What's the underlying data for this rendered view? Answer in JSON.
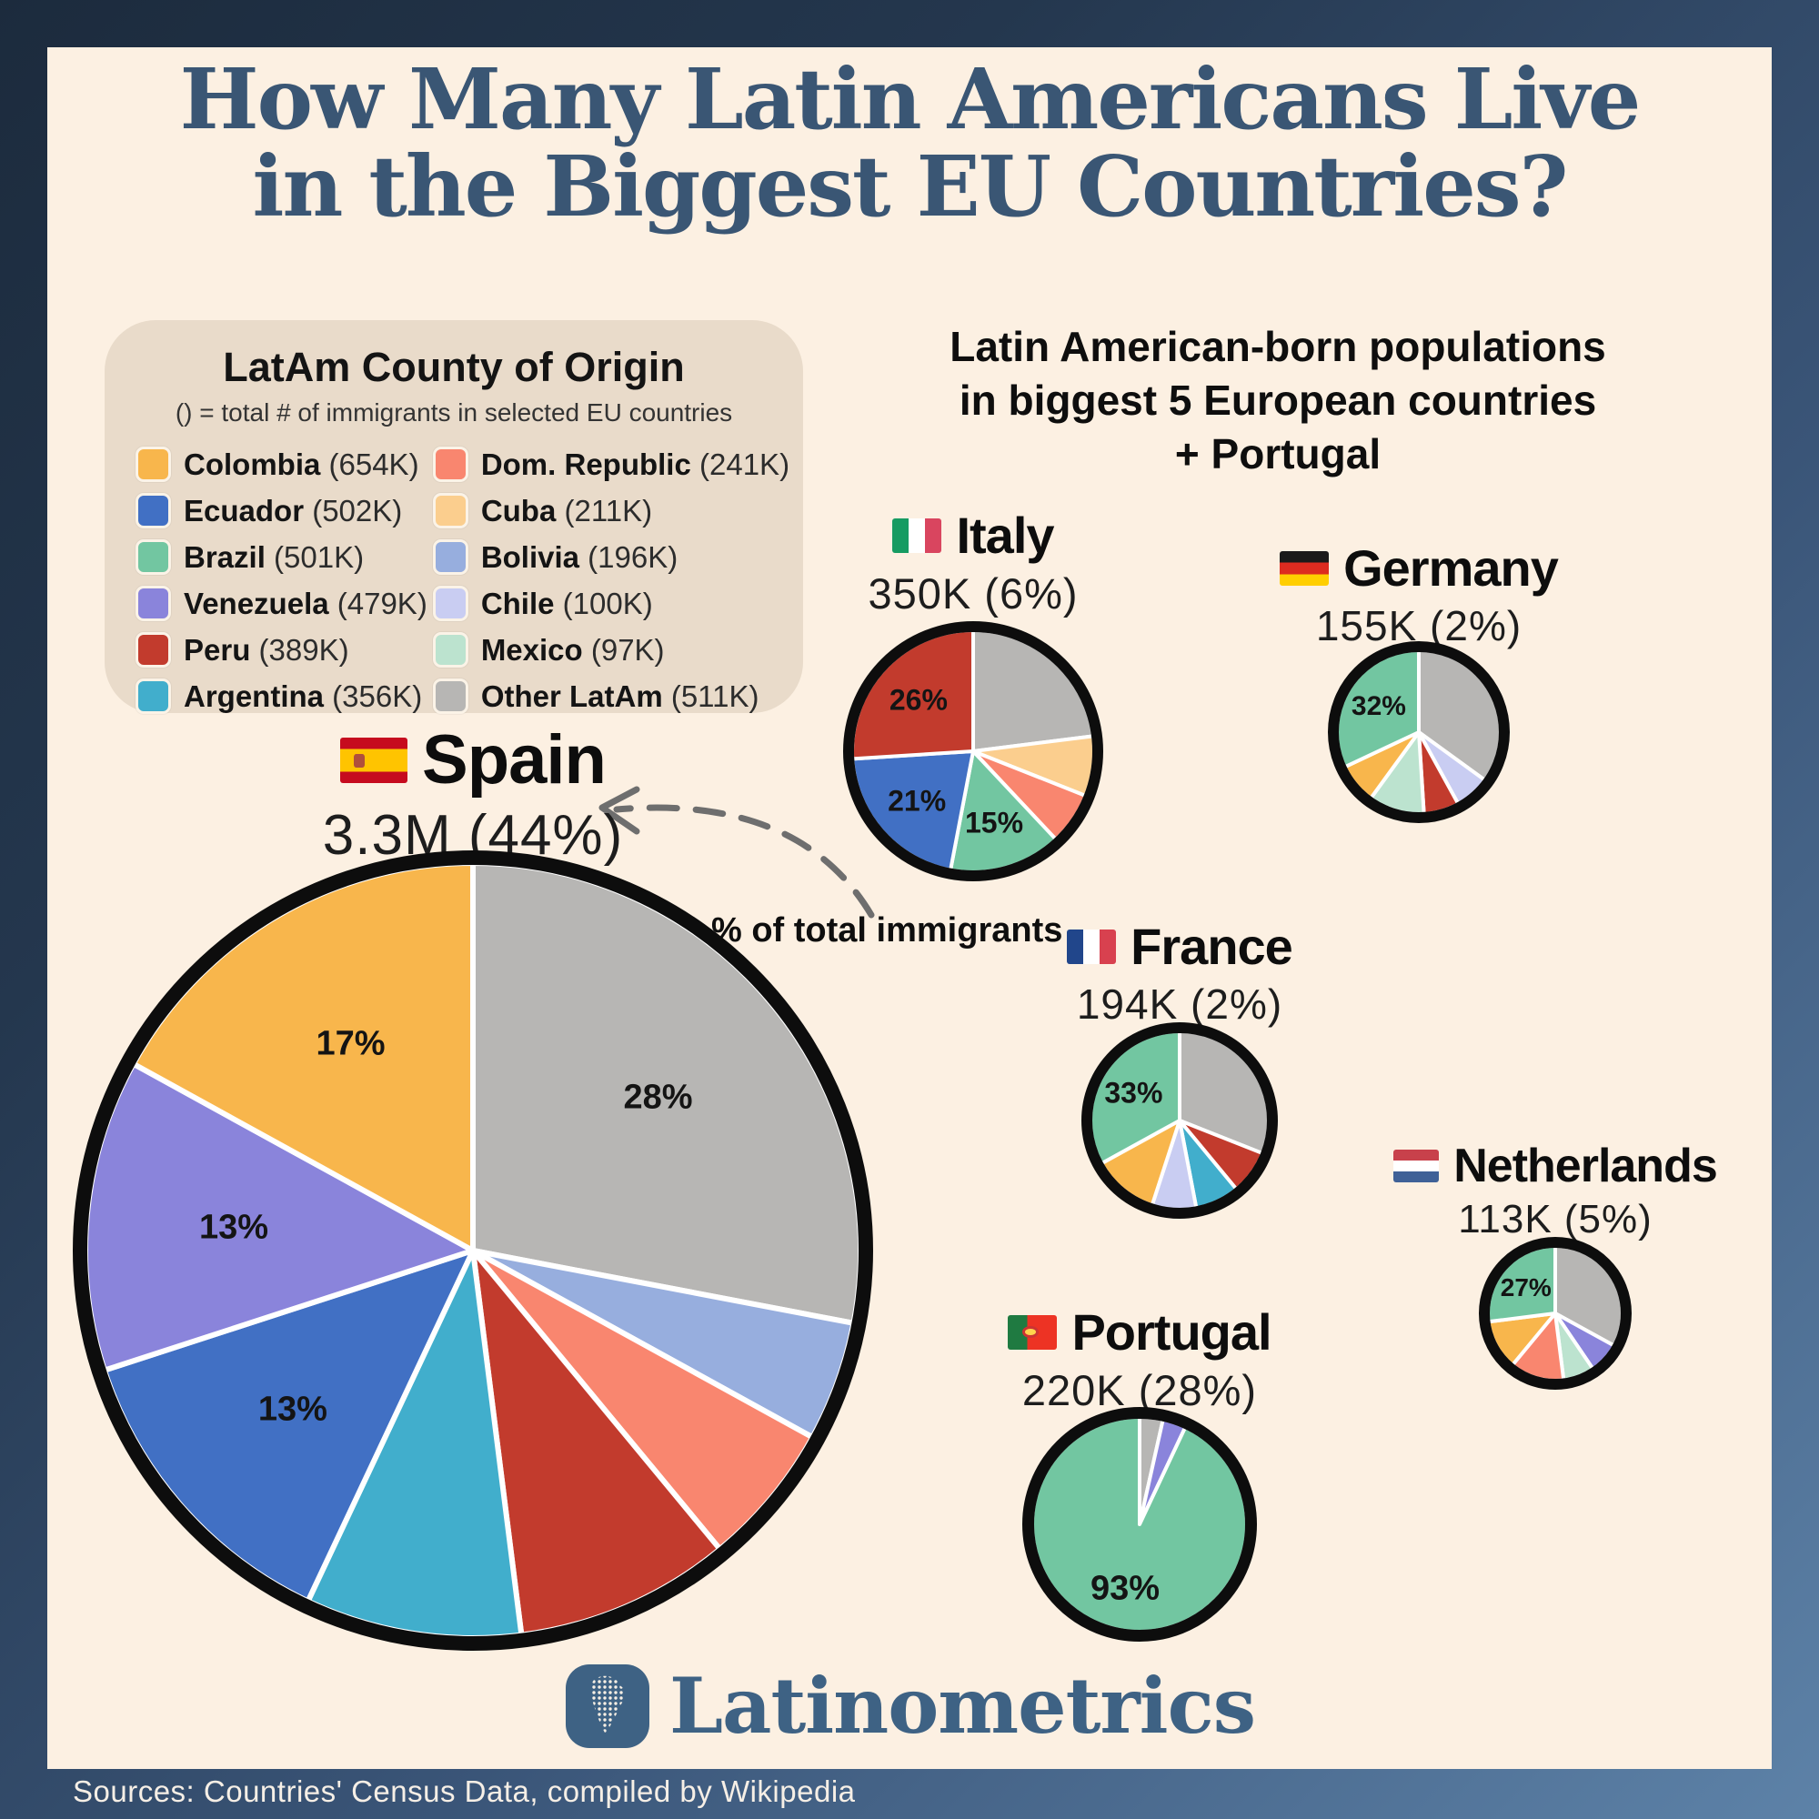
{
  "header": {
    "title_line1": "How Many Latin Americans Live",
    "title_line2": "in the Biggest EU Countries?",
    "title_color": "#3A5674"
  },
  "legend": {
    "title": "LatAm County of Origin",
    "subtitle": "() = total # of immigrants in selected EU countries",
    "items": [
      {
        "name": "Colombia",
        "total": "654K",
        "color": "#F8B64C"
      },
      {
        "name": "Ecuador",
        "total": "502K",
        "color": "#4170C4"
      },
      {
        "name": "Brazil",
        "total": "501K",
        "color": "#72C6A1"
      },
      {
        "name": "Venezuela",
        "total": "479K",
        "color": "#8A84DB"
      },
      {
        "name": "Peru",
        "total": "389K",
        "color": "#C23B2D"
      },
      {
        "name": "Argentina",
        "total": "356K",
        "color": "#41AECC"
      },
      {
        "name": "Dom. Republic",
        "total": "241K",
        "color": "#F9866F"
      },
      {
        "name": "Cuba",
        "total": "211K",
        "color": "#FBCE8E"
      },
      {
        "name": "Bolivia",
        "total": "196K",
        "color": "#97AEDE"
      },
      {
        "name": "Chile",
        "total": "100K",
        "color": "#C9CDF2"
      },
      {
        "name": "Mexico",
        "total": "97K",
        "color": "#BCE3CF"
      },
      {
        "name": "Other LatAm",
        "total": "511K",
        "color": "#B7B6B4"
      }
    ]
  },
  "overview": {
    "line1": "Latin American-born populations",
    "line2": "in biggest 5 European countries",
    "line3": "+ Portugal"
  },
  "annotation": {
    "text": "% of total immigrants"
  },
  "palette": {
    "Colombia": "#F8B64C",
    "Ecuador": "#4170C4",
    "Brazil": "#72C6A1",
    "Venezuela": "#8A84DB",
    "Peru": "#C23B2D",
    "Argentina": "#41AECC",
    "Dom. Republic": "#F9866F",
    "Cuba": "#FBCE8E",
    "Bolivia": "#97AEDE",
    "Chile": "#C9CDF2",
    "Mexico": "#BCE3CF",
    "Other LatAm": "#B7B6B4"
  },
  "chart_data": [
    {
      "type": "pie",
      "country": "Spain",
      "id": "spain",
      "population": "3.3M",
      "share_of_total_immigrants": "44%",
      "slices": [
        {
          "origin": "Other LatAm",
          "pct": 28,
          "label": "28%"
        },
        {
          "origin": "Bolivia",
          "pct": 5,
          "label": ""
        },
        {
          "origin": "Dom. Republic",
          "pct": 6,
          "label": ""
        },
        {
          "origin": "Peru",
          "pct": 9,
          "label": ""
        },
        {
          "origin": "Argentina",
          "pct": 9,
          "label": ""
        },
        {
          "origin": "Ecuador",
          "pct": 13,
          "label": "13%"
        },
        {
          "origin": "Venezuela",
          "pct": 13,
          "label": "13%"
        },
        {
          "origin": "Colombia",
          "pct": 17,
          "label": "17%"
        }
      ]
    },
    {
      "type": "pie",
      "country": "Italy",
      "id": "italy",
      "population": "350K",
      "share_of_total_immigrants": "6%",
      "slices": [
        {
          "origin": "Other LatAm",
          "pct": 23,
          "label": ""
        },
        {
          "origin": "Cuba",
          "pct": 8,
          "label": ""
        },
        {
          "origin": "Dom. Republic",
          "pct": 7,
          "label": ""
        },
        {
          "origin": "Brazil",
          "pct": 15,
          "label": "15%"
        },
        {
          "origin": "Ecuador",
          "pct": 21,
          "label": "21%"
        },
        {
          "origin": "Peru",
          "pct": 26,
          "label": "26%"
        }
      ]
    },
    {
      "type": "pie",
      "country": "Germany",
      "id": "germany",
      "population": "155K",
      "share_of_total_immigrants": "2%",
      "slices": [
        {
          "origin": "Other LatAm",
          "pct": 35,
          "label": ""
        },
        {
          "origin": "Chile",
          "pct": 7,
          "label": ""
        },
        {
          "origin": "Peru",
          "pct": 7,
          "label": ""
        },
        {
          "origin": "Mexico",
          "pct": 11,
          "label": ""
        },
        {
          "origin": "Colombia",
          "pct": 8,
          "label": ""
        },
        {
          "origin": "Brazil",
          "pct": 32,
          "label": "32%"
        }
      ]
    },
    {
      "type": "pie",
      "country": "France",
      "id": "france",
      "population": "194K",
      "share_of_total_immigrants": "2%",
      "slices": [
        {
          "origin": "Other LatAm",
          "pct": 31,
          "label": ""
        },
        {
          "origin": "Peru",
          "pct": 8,
          "label": ""
        },
        {
          "origin": "Argentina",
          "pct": 8,
          "label": ""
        },
        {
          "origin": "Chile",
          "pct": 8,
          "label": ""
        },
        {
          "origin": "Colombia",
          "pct": 12,
          "label": ""
        },
        {
          "origin": "Brazil",
          "pct": 33,
          "label": "33%"
        }
      ]
    },
    {
      "type": "pie",
      "country": "Netherlands",
      "id": "netherlands",
      "population": "113K",
      "share_of_total_immigrants": "5%",
      "slices": [
        {
          "origin": "Other LatAm",
          "pct": 33,
          "label": ""
        },
        {
          "origin": "Venezuela",
          "pct": 7.5,
          "label": ""
        },
        {
          "origin": "Mexico",
          "pct": 7.5,
          "label": ""
        },
        {
          "origin": "Dom. Republic",
          "pct": 13,
          "label": ""
        },
        {
          "origin": "Colombia",
          "pct": 12,
          "label": ""
        },
        {
          "origin": "Brazil",
          "pct": 27,
          "label": "27%"
        }
      ]
    },
    {
      "type": "pie",
      "country": "Portugal",
      "id": "portugal",
      "population": "220K",
      "share_of_total_immigrants": "28%",
      "slices": [
        {
          "origin": "Other LatAm",
          "pct": 3.5,
          "label": ""
        },
        {
          "origin": "Venezuela",
          "pct": 3.5,
          "label": ""
        },
        {
          "origin": "Brazil",
          "pct": 93,
          "label": "93%"
        }
      ]
    }
  ],
  "logo": {
    "text": "Latinometrics"
  },
  "footer": {
    "sources": "Sources: Countries' Census Data, compiled by Wikipedia"
  }
}
